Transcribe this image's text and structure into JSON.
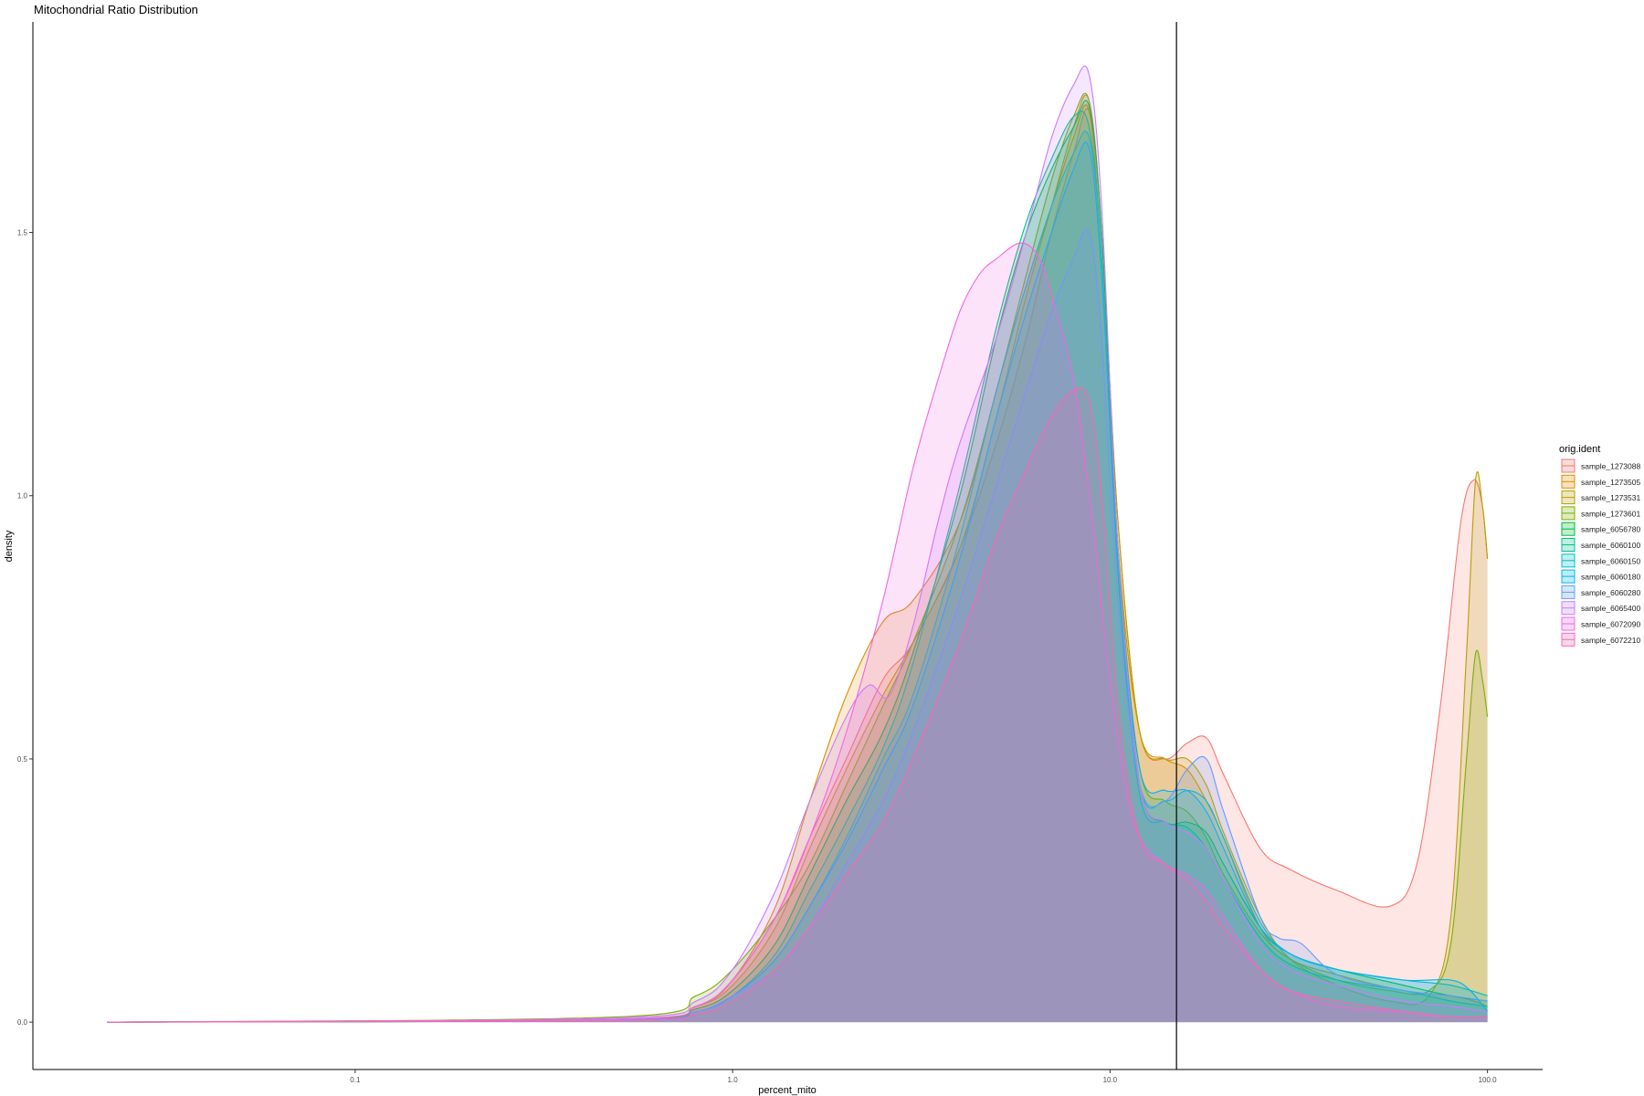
{
  "chart_data": {
    "type": "area",
    "title": "Mitochondrial Ratio Distribution",
    "xlabel": "percent_mito",
    "ylabel": "density",
    "x_scale": "log10",
    "xlim": [
      0.014,
      140
    ],
    "ylim": [
      -0.09,
      1.9
    ],
    "x_ticks": [
      0.1,
      1.0,
      10.0,
      100.0
    ],
    "x_tick_labels": [
      "0.1",
      "1.0",
      "10.0",
      "100.0"
    ],
    "y_ticks": [
      0.0,
      0.5,
      1.0,
      1.5
    ],
    "y_tick_labels": [
      "0.0",
      "0.5",
      "1.0",
      "1.5"
    ],
    "grid": false,
    "threshold_line_x": 15,
    "legend_title": "orig.ident",
    "legend_position": "right",
    "fill_opacity": 0.18,
    "series": [
      {
        "name": "sample_1273088",
        "color": "#F8766D",
        "x": [
          0.022,
          0.5,
          0.8,
          1.0,
          1.3,
          1.6,
          2.0,
          2.5,
          3.0,
          4.0,
          5.0,
          6.0,
          7.0,
          8.0,
          8.8,
          9.5,
          10.5,
          12.0,
          14.0,
          16.0,
          18.0,
          20.0,
          25.0,
          30.0,
          40.0,
          55.0,
          65.0,
          75.0,
          85.0,
          92.0,
          97.0,
          100.0
        ],
        "y": [
          0.0,
          0.005,
          0.03,
          0.08,
          0.2,
          0.35,
          0.5,
          0.65,
          0.72,
          0.9,
          1.1,
          1.3,
          1.5,
          1.65,
          1.73,
          1.5,
          0.95,
          0.55,
          0.5,
          0.53,
          0.54,
          0.47,
          0.33,
          0.29,
          0.25,
          0.22,
          0.3,
          0.6,
          0.95,
          1.03,
          0.98,
          0.88
        ]
      },
      {
        "name": "sample_1273505",
        "color": "#DE8C00",
        "x": [
          0.022,
          0.5,
          0.8,
          1.0,
          1.3,
          1.6,
          2.0,
          2.5,
          3.0,
          4.0,
          5.0,
          6.0,
          7.0,
          8.0,
          8.8,
          9.5,
          10.5,
          12.0,
          14.0,
          16.0,
          18.0,
          20.0,
          25.0,
          30.0,
          40.0,
          60.0,
          80.0,
          92.0,
          100.0
        ],
        "y": [
          0.0,
          0.005,
          0.03,
          0.08,
          0.22,
          0.42,
          0.62,
          0.76,
          0.8,
          0.95,
          1.2,
          1.4,
          1.55,
          1.68,
          1.73,
          1.45,
          0.9,
          0.55,
          0.5,
          0.48,
          0.42,
          0.35,
          0.18,
          0.12,
          0.09,
          0.06,
          0.05,
          0.04,
          0.03
        ]
      },
      {
        "name": "sample_1273531",
        "color": "#B79F00",
        "x": [
          0.022,
          0.5,
          0.8,
          1.0,
          1.3,
          1.6,
          2.0,
          2.5,
          3.0,
          4.0,
          5.0,
          6.0,
          7.0,
          8.0,
          8.8,
          9.5,
          10.5,
          12.0,
          14.0,
          16.0,
          18.0,
          20.0,
          25.0,
          30.0,
          40.0,
          55.0,
          70.0,
          80.0,
          88.0,
          93.0,
          97.0,
          100.0
        ],
        "y": [
          0.0,
          0.005,
          0.03,
          0.07,
          0.18,
          0.33,
          0.48,
          0.62,
          0.72,
          0.9,
          1.15,
          1.38,
          1.55,
          1.7,
          1.75,
          1.5,
          0.95,
          0.55,
          0.5,
          0.5,
          0.45,
          0.36,
          0.2,
          0.12,
          0.07,
          0.04,
          0.05,
          0.2,
          0.7,
          1.03,
          0.98,
          0.88
        ]
      },
      {
        "name": "sample_1273601",
        "color": "#7CAE00",
        "x": [
          0.022,
          0.5,
          0.8,
          1.0,
          1.3,
          1.6,
          2.0,
          2.5,
          3.0,
          4.0,
          5.0,
          6.0,
          7.0,
          8.0,
          8.8,
          9.5,
          10.5,
          12.0,
          14.0,
          16.0,
          18.0,
          20.0,
          25.0,
          30.0,
          40.0,
          55.0,
          70.0,
          80.0,
          88.0,
          93.0,
          97.0,
          100.0
        ],
        "y": [
          0.0,
          0.01,
          0.05,
          0.1,
          0.2,
          0.3,
          0.45,
          0.6,
          0.72,
          0.95,
          1.2,
          1.42,
          1.6,
          1.72,
          1.75,
          1.5,
          0.9,
          0.48,
          0.42,
          0.4,
          0.35,
          0.28,
          0.17,
          0.12,
          0.08,
          0.06,
          0.06,
          0.15,
          0.5,
          0.7,
          0.65,
          0.58
        ]
      },
      {
        "name": "sample_6056780",
        "color": "#00BA38",
        "x": [
          0.022,
          0.5,
          0.8,
          1.0,
          1.3,
          1.6,
          2.0,
          2.5,
          3.0,
          4.0,
          5.0,
          6.0,
          7.0,
          8.0,
          8.8,
          9.5,
          10.5,
          12.0,
          14.0,
          16.0,
          18.0,
          20.0,
          25.0,
          30.0,
          40.0,
          60.0,
          80.0,
          100.0
        ],
        "y": [
          0.0,
          0.004,
          0.025,
          0.06,
          0.15,
          0.28,
          0.42,
          0.55,
          0.7,
          1.0,
          1.3,
          1.5,
          1.62,
          1.7,
          1.74,
          1.5,
          0.9,
          0.45,
          0.38,
          0.38,
          0.36,
          0.3,
          0.18,
          0.13,
          0.1,
          0.07,
          0.05,
          0.04
        ]
      },
      {
        "name": "sample_6060100",
        "color": "#00C08B",
        "x": [
          0.022,
          0.5,
          0.8,
          1.0,
          1.3,
          1.6,
          2.0,
          2.5,
          3.0,
          4.0,
          5.0,
          6.0,
          7.0,
          8.0,
          8.8,
          9.5,
          10.5,
          12.0,
          14.0,
          16.0,
          18.0,
          20.0,
          25.0,
          30.0,
          40.0,
          60.0,
          80.0,
          100.0
        ],
        "y": [
          0.0,
          0.004,
          0.02,
          0.05,
          0.13,
          0.25,
          0.38,
          0.52,
          0.68,
          1.02,
          1.32,
          1.52,
          1.64,
          1.72,
          1.7,
          1.45,
          0.85,
          0.43,
          0.38,
          0.37,
          0.33,
          0.27,
          0.16,
          0.11,
          0.08,
          0.06,
          0.04,
          0.03
        ]
      },
      {
        "name": "sample_6060150",
        "color": "#00BFC4",
        "x": [
          0.022,
          0.5,
          0.8,
          1.0,
          1.3,
          1.6,
          2.0,
          2.5,
          3.0,
          4.0,
          5.0,
          6.0,
          7.0,
          8.0,
          8.8,
          9.5,
          10.5,
          12.0,
          14.0,
          16.0,
          18.0,
          20.0,
          25.0,
          30.0,
          40.0,
          60.0,
          80.0,
          100.0
        ],
        "y": [
          0.0,
          0.004,
          0.02,
          0.05,
          0.12,
          0.22,
          0.35,
          0.5,
          0.62,
          0.92,
          1.2,
          1.4,
          1.55,
          1.65,
          1.68,
          1.45,
          0.88,
          0.45,
          0.42,
          0.44,
          0.42,
          0.35,
          0.19,
          0.13,
          0.1,
          0.08,
          0.07,
          0.05
        ]
      },
      {
        "name": "sample_6060180",
        "color": "#00B4F0",
        "x": [
          0.022,
          0.5,
          0.8,
          1.0,
          1.3,
          1.6,
          2.0,
          2.5,
          3.0,
          4.0,
          5.0,
          6.0,
          7.0,
          8.0,
          8.8,
          9.5,
          10.5,
          12.0,
          14.0,
          16.0,
          18.0,
          20.0,
          25.0,
          30.0,
          40.0,
          60.0,
          80.0,
          90.0,
          100.0
        ],
        "y": [
          0.0,
          0.004,
          0.02,
          0.05,
          0.12,
          0.22,
          0.34,
          0.48,
          0.6,
          0.88,
          1.15,
          1.35,
          1.5,
          1.62,
          1.66,
          1.42,
          0.88,
          0.48,
          0.44,
          0.44,
          0.4,
          0.33,
          0.18,
          0.13,
          0.1,
          0.08,
          0.08,
          0.06,
          0.02
        ]
      },
      {
        "name": "sample_6060280",
        "color": "#619CFF",
        "x": [
          0.022,
          0.5,
          0.8,
          1.0,
          1.3,
          1.6,
          2.0,
          2.5,
          3.0,
          4.0,
          5.0,
          6.0,
          7.0,
          8.0,
          8.8,
          9.5,
          10.5,
          12.0,
          14.0,
          16.0,
          18.0,
          20.0,
          25.0,
          28.0,
          32.0,
          40.0,
          60.0,
          80.0,
          100.0
        ],
        "y": [
          0.0,
          0.004,
          0.02,
          0.05,
          0.1,
          0.18,
          0.3,
          0.42,
          0.55,
          0.8,
          1.02,
          1.2,
          1.35,
          1.45,
          1.5,
          1.3,
          0.8,
          0.45,
          0.42,
          0.48,
          0.5,
          0.4,
          0.2,
          0.16,
          0.15,
          0.09,
          0.06,
          0.05,
          0.04
        ]
      },
      {
        "name": "sample_6065400",
        "color": "#C77CFF",
        "x": [
          0.022,
          0.5,
          0.8,
          1.0,
          1.3,
          1.6,
          2.0,
          2.3,
          2.6,
          3.0,
          3.5,
          4.0,
          5.0,
          6.0,
          7.0,
          8.0,
          8.8,
          9.5,
          10.5,
          12.0,
          14.0,
          16.0,
          18.0,
          20.0,
          25.0,
          30.0,
          40.0,
          60.0,
          80.0,
          100.0
        ],
        "y": [
          0.0,
          0.008,
          0.04,
          0.1,
          0.25,
          0.42,
          0.58,
          0.64,
          0.62,
          0.75,
          0.95,
          1.1,
          1.3,
          1.5,
          1.68,
          1.78,
          1.8,
          1.55,
          0.9,
          0.45,
          0.38,
          0.36,
          0.33,
          0.27,
          0.15,
          0.1,
          0.07,
          0.04,
          0.03,
          0.02
        ]
      },
      {
        "name": "sample_6072090",
        "color": "#F564E3",
        "x": [
          0.022,
          0.5,
          0.8,
          1.0,
          1.3,
          1.6,
          2.0,
          2.5,
          3.0,
          3.5,
          4.0,
          4.5,
          5.0,
          5.8,
          6.5,
          7.2,
          8.0,
          9.0,
          10.0,
          11.0,
          12.0,
          14.0,
          16.0,
          18.0,
          20.0,
          25.0,
          30.0,
          40.0,
          60.0,
          80.0,
          100.0
        ],
        "y": [
          0.0,
          0.006,
          0.03,
          0.08,
          0.2,
          0.35,
          0.55,
          0.8,
          1.05,
          1.22,
          1.35,
          1.42,
          1.45,
          1.48,
          1.45,
          1.35,
          1.22,
          0.95,
          0.65,
          0.45,
          0.35,
          0.3,
          0.28,
          0.25,
          0.2,
          0.1,
          0.06,
          0.03,
          0.02,
          0.01,
          0.01
        ]
      },
      {
        "name": "sample_6072210",
        "color": "#FF64B0",
        "x": [
          0.022,
          0.5,
          0.8,
          1.0,
          1.3,
          1.6,
          2.0,
          2.5,
          3.0,
          4.0,
          5.0,
          6.0,
          7.0,
          8.0,
          8.8,
          9.5,
          10.5,
          12.0,
          14.0,
          16.0,
          18.0,
          20.0,
          25.0,
          30.0,
          40.0,
          60.0,
          80.0,
          100.0
        ],
        "y": [
          0.0,
          0.003,
          0.015,
          0.04,
          0.1,
          0.18,
          0.28,
          0.38,
          0.5,
          0.72,
          0.92,
          1.05,
          1.15,
          1.2,
          1.18,
          1.0,
          0.6,
          0.35,
          0.3,
          0.27,
          0.23,
          0.18,
          0.1,
          0.06,
          0.04,
          0.02,
          0.01,
          0.01
        ]
      }
    ]
  }
}
